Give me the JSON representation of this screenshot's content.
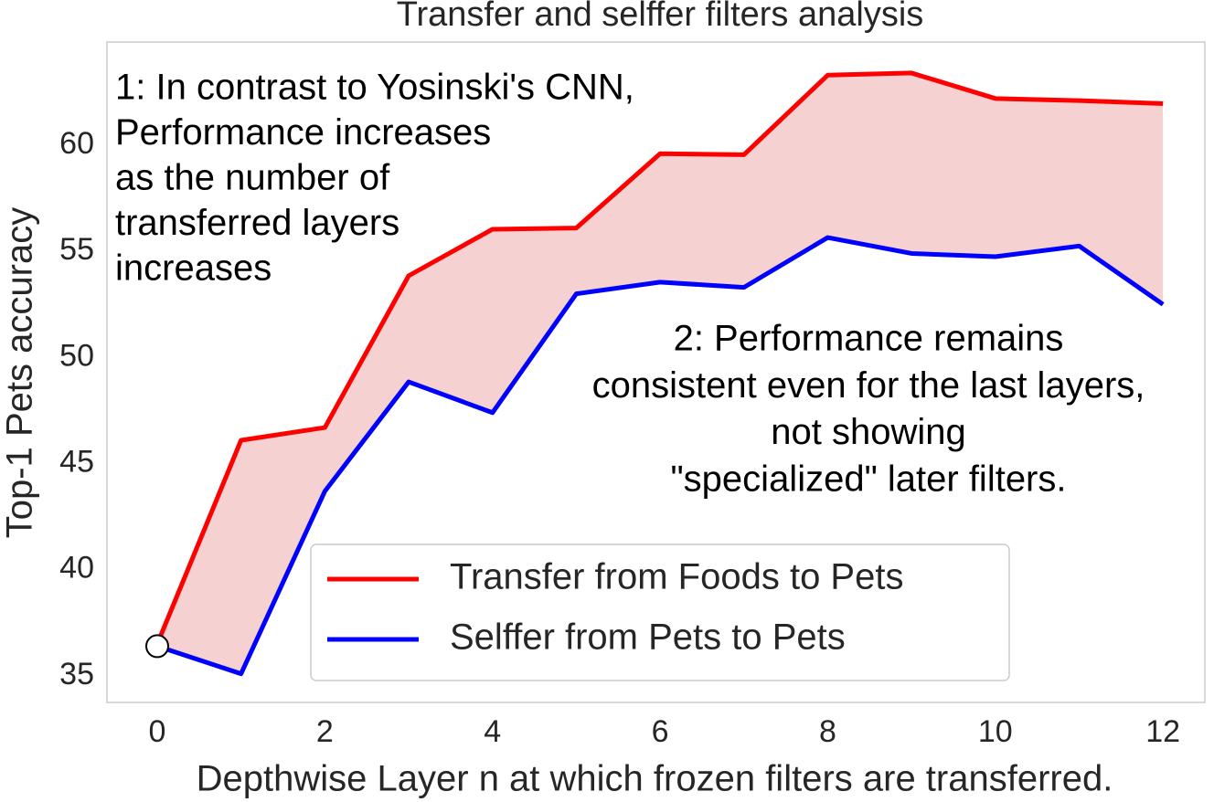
{
  "chart_data": {
    "type": "line",
    "title": "Transfer and selffer filters analysis",
    "xlabel": "Depthwise Layer n at which frozen filters are transferred.",
    "ylabel": "Top-1 Pets accuracy",
    "x": [
      0,
      1,
      2,
      3,
      4,
      5,
      6,
      7,
      8,
      9,
      10,
      11,
      12
    ],
    "series": [
      {
        "name": "Transfer from Foods to Pets",
        "color": "#ff0000",
        "values": [
          36.5,
          46.1,
          46.7,
          53.85,
          56.04,
          56.1,
          59.6,
          59.55,
          63.3,
          63.4,
          62.2,
          62.1,
          61.96
        ]
      },
      {
        "name": "Selffer from Pets to Pets",
        "color": "#0000ff",
        "values": [
          36.4,
          35.1,
          43.7,
          48.85,
          47.4,
          53.0,
          53.55,
          53.3,
          55.65,
          54.9,
          54.75,
          55.25,
          52.5
        ]
      }
    ],
    "fill_between": {
      "color": "#f4cccc"
    },
    "marker": {
      "x": 0,
      "y": 36.4
    },
    "xlim": [
      -0.6,
      12.5
    ],
    "xticks": [
      0,
      2,
      4,
      6,
      8,
      10,
      12
    ],
    "ylim": [
      33.75,
      64.86
    ],
    "yticks": [
      35,
      40,
      45,
      50,
      55,
      60
    ],
    "grid": false,
    "legend": "lower right",
    "annotations": [
      {
        "lines": [
          "1: In contrast to Yosinski's CNN,",
          "Performance increases",
          "as the number of",
          "transferred layers",
          "increases"
        ]
      },
      {
        "lines": [
          "2: Performance remains",
          "consistent even for the last layers,",
          "not showing",
          "\"specialized\" later filters."
        ]
      }
    ]
  }
}
